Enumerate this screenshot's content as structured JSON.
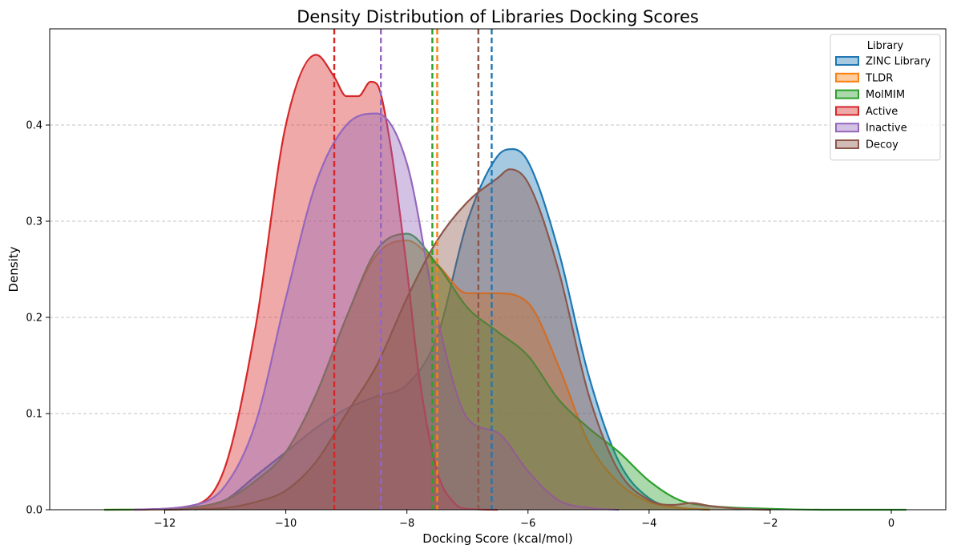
{
  "chart_data": {
    "type": "area",
    "title": "Density Distribution of Libraries Docking Scores",
    "xlabel": "Docking Score (kcal/mol)",
    "ylabel": "Density",
    "xlim": [
      -13.9,
      0.9
    ],
    "ylim": [
      0,
      0.5
    ],
    "x_ticks": [
      -12,
      -10,
      -8,
      -6,
      -4,
      -2,
      0
    ],
    "y_ticks": [
      0.0,
      0.1,
      0.2,
      0.3,
      0.4
    ],
    "x_tick_labels": [
      "−12",
      "−10",
      "−8",
      "−6",
      "−4",
      "−2",
      "0"
    ],
    "y_tick_labels": [
      "0.0",
      "0.1",
      "0.2",
      "0.3",
      "0.4"
    ],
    "grid": "y-dashed",
    "legend": {
      "title": "Library",
      "placement": "top-right"
    },
    "series": [
      {
        "name": "ZINC Library",
        "color": "#1f77b4",
        "mean": -6.6,
        "x": [
          -11.5,
          -11.0,
          -10.5,
          -10.0,
          -9.5,
          -9.0,
          -8.5,
          -8.0,
          -7.5,
          -7.0,
          -6.5,
          -6.25,
          -6.0,
          -5.5,
          -5.0,
          -4.5,
          -4.0,
          -3.5,
          -3.0
        ],
        "y": [
          0.0,
          0.01,
          0.035,
          0.06,
          0.085,
          0.105,
          0.118,
          0.13,
          0.18,
          0.3,
          0.368,
          0.375,
          0.362,
          0.27,
          0.14,
          0.05,
          0.012,
          0.002,
          0.0
        ]
      },
      {
        "name": "TLDR",
        "color": "#ff7f0e",
        "mean": -7.5,
        "x": [
          -13.0,
          -11.5,
          -11.0,
          -10.5,
          -10.0,
          -9.5,
          -9.0,
          -8.5,
          -8.0,
          -7.5,
          -7.0,
          -6.5,
          -6.0,
          -5.5,
          -5.0,
          -4.5,
          -4.0,
          -3.5,
          -3.0
        ],
        "y": [
          0.0,
          0.001,
          0.01,
          0.03,
          0.06,
          0.12,
          0.2,
          0.265,
          0.28,
          0.255,
          0.225,
          0.225,
          0.215,
          0.15,
          0.07,
          0.028,
          0.008,
          0.002,
          0.0
        ]
      },
      {
        "name": "MolMIM",
        "color": "#2ca02c",
        "mean": -7.58,
        "x": [
          -13.0,
          -12.0,
          -11.0,
          -10.5,
          -10.0,
          -9.5,
          -9.0,
          -8.5,
          -8.0,
          -7.5,
          -7.0,
          -6.5,
          -6.0,
          -5.5,
          -5.0,
          -4.5,
          -4.0,
          -3.5,
          -3.0,
          -2.0,
          -1.0,
          0.25
        ],
        "y": [
          0.0,
          0.001,
          0.01,
          0.03,
          0.06,
          0.12,
          0.2,
          0.27,
          0.287,
          0.255,
          0.21,
          0.185,
          0.16,
          0.115,
          0.085,
          0.06,
          0.03,
          0.01,
          0.004,
          0.001,
          0.0,
          0.0
        ]
      },
      {
        "name": "Active",
        "color": "#d62728",
        "mean": -9.2,
        "x": [
          -12.5,
          -11.5,
          -11.0,
          -10.5,
          -10.0,
          -9.5,
          -9.2,
          -9.0,
          -8.8,
          -8.6,
          -8.5,
          -8.3,
          -8.0,
          -7.8,
          -7.5,
          -7.2,
          -7.0,
          -6.5
        ],
        "y": [
          0.0,
          0.005,
          0.045,
          0.19,
          0.4,
          0.473,
          0.45,
          0.43,
          0.43,
          0.445,
          0.443,
          0.39,
          0.25,
          0.14,
          0.04,
          0.006,
          0.001,
          0.0
        ]
      },
      {
        "name": "Inactive",
        "color": "#9467bd",
        "mean": -8.43,
        "x": [
          -12.5,
          -11.5,
          -11.0,
          -10.5,
          -10.0,
          -9.5,
          -9.0,
          -8.5,
          -8.0,
          -7.5,
          -7.0,
          -6.5,
          -6.0,
          -5.5,
          -5.0,
          -4.5
        ],
        "y": [
          0.0,
          0.005,
          0.025,
          0.09,
          0.22,
          0.34,
          0.4,
          0.412,
          0.36,
          0.2,
          0.095,
          0.08,
          0.04,
          0.01,
          0.002,
          0.0
        ]
      },
      {
        "name": "Decoy",
        "color": "#8c564b",
        "mean": -6.82,
        "x": [
          -12.0,
          -11.0,
          -10.5,
          -10.0,
          -9.5,
          -9.0,
          -8.5,
          -8.0,
          -7.5,
          -7.0,
          -6.5,
          -6.3,
          -6.0,
          -5.5,
          -5.0,
          -4.5,
          -4.0,
          -3.6,
          -3.3,
          -3.0,
          -2.5,
          -2.0
        ],
        "y": [
          0.0,
          0.002,
          0.008,
          0.02,
          0.05,
          0.1,
          0.15,
          0.22,
          0.28,
          0.32,
          0.345,
          0.354,
          0.34,
          0.25,
          0.12,
          0.04,
          0.01,
          0.005,
          0.007,
          0.004,
          0.001,
          0.0
        ]
      }
    ]
  }
}
